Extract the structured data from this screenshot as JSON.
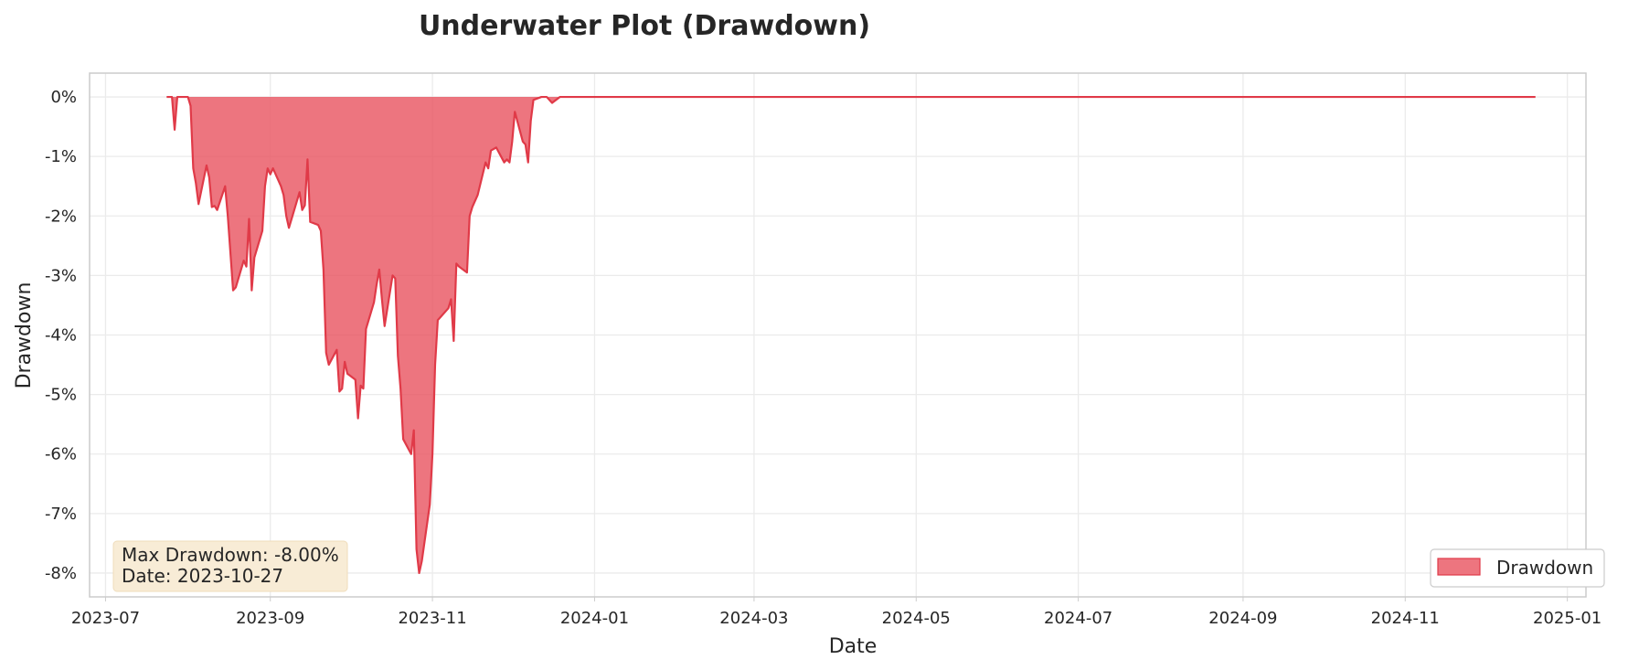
{
  "chart_data": {
    "type": "area",
    "title": "Underwater Plot (Drawdown)",
    "xlabel": "Date",
    "ylabel": "Drawdown",
    "x_axis_type": "date",
    "xlim": [
      "2023-06-25",
      "2025-01-08"
    ],
    "ylim": [
      -8.4,
      0.4
    ],
    "y_unit": "%",
    "grid": true,
    "legend_position": "lower-right",
    "x_ticks": [
      "2023-07",
      "2023-09",
      "2023-11",
      "2024-01",
      "2024-03",
      "2024-05",
      "2024-07",
      "2024-09",
      "2024-11",
      "2025-01"
    ],
    "y_ticks": [
      "0%",
      "-1%",
      "-2%",
      "-3%",
      "-4%",
      "-5%",
      "-6%",
      "-7%",
      "-8%"
    ],
    "colors": {
      "fill": "#e8525f",
      "line": "#e03a48",
      "grid": "#ebebeb",
      "frame": "#cccccc",
      "annotation_bg": "#f8ecd6",
      "annotation_border": "#efdcbb"
    },
    "annotation": {
      "line1": "Max Drawdown: -8.00%",
      "line2": "Date: 2023-10-27"
    },
    "series": [
      {
        "name": "Drawdown",
        "points": [
          [
            "2023-07-24",
            0.0
          ],
          [
            "2023-07-26",
            0.0
          ],
          [
            "2023-07-27",
            -0.55
          ],
          [
            "2023-07-28",
            0.0
          ],
          [
            "2023-07-31",
            0.0
          ],
          [
            "2023-08-01",
            0.0
          ],
          [
            "2023-08-02",
            -0.15
          ],
          [
            "2023-08-03",
            -1.2
          ],
          [
            "2023-08-04",
            -1.45
          ],
          [
            "2023-08-05",
            -1.8
          ],
          [
            "2023-08-08",
            -1.15
          ],
          [
            "2023-08-09",
            -1.35
          ],
          [
            "2023-08-10",
            -1.85
          ],
          [
            "2023-08-11",
            -1.83
          ],
          [
            "2023-08-12",
            -1.9
          ],
          [
            "2023-08-15",
            -1.5
          ],
          [
            "2023-08-16",
            -2.0
          ],
          [
            "2023-08-18",
            -3.25
          ],
          [
            "2023-08-19",
            -3.2
          ],
          [
            "2023-08-22",
            -2.75
          ],
          [
            "2023-08-23",
            -2.85
          ],
          [
            "2023-08-24",
            -2.05
          ],
          [
            "2023-08-25",
            -3.25
          ],
          [
            "2023-08-26",
            -2.7
          ],
          [
            "2023-08-29",
            -2.25
          ],
          [
            "2023-08-30",
            -1.5
          ],
          [
            "2023-08-31",
            -1.2
          ],
          [
            "2023-09-01",
            -1.3
          ],
          [
            "2023-09-02",
            -1.2
          ],
          [
            "2023-09-05",
            -1.5
          ],
          [
            "2023-09-06",
            -1.65
          ],
          [
            "2023-09-07",
            -2.0
          ],
          [
            "2023-09-08",
            -2.2
          ],
          [
            "2023-09-09",
            -2.05
          ],
          [
            "2023-09-12",
            -1.6
          ],
          [
            "2023-09-13",
            -1.9
          ],
          [
            "2023-09-14",
            -1.82
          ],
          [
            "2023-09-15",
            -1.05
          ],
          [
            "2023-09-16",
            -2.1
          ],
          [
            "2023-09-19",
            -2.15
          ],
          [
            "2023-09-20",
            -2.25
          ],
          [
            "2023-09-21",
            -2.9
          ],
          [
            "2023-09-22",
            -4.3
          ],
          [
            "2023-09-23",
            -4.5
          ],
          [
            "2023-09-26",
            -4.25
          ],
          [
            "2023-09-27",
            -4.95
          ],
          [
            "2023-09-28",
            -4.9
          ],
          [
            "2023-09-29",
            -4.45
          ],
          [
            "2023-09-30",
            -4.65
          ],
          [
            "2023-10-03",
            -4.75
          ],
          [
            "2023-10-04",
            -5.4
          ],
          [
            "2023-10-05",
            -4.85
          ],
          [
            "2023-10-06",
            -4.9
          ],
          [
            "2023-10-07",
            -3.9
          ],
          [
            "2023-10-10",
            -3.45
          ],
          [
            "2023-10-11",
            -3.15
          ],
          [
            "2023-10-12",
            -2.9
          ],
          [
            "2023-10-13",
            -3.4
          ],
          [
            "2023-10-14",
            -3.85
          ],
          [
            "2023-10-17",
            -3.0
          ],
          [
            "2023-10-18",
            -3.05
          ],
          [
            "2023-10-19",
            -4.35
          ],
          [
            "2023-10-20",
            -4.9
          ],
          [
            "2023-10-21",
            -5.75
          ],
          [
            "2023-10-24",
            -6.0
          ],
          [
            "2023-10-25",
            -5.6
          ],
          [
            "2023-10-26",
            -7.6
          ],
          [
            "2023-10-27",
            -8.0
          ],
          [
            "2023-10-28",
            -7.8
          ],
          [
            "2023-10-31",
            -6.85
          ],
          [
            "2023-11-01",
            -6.0
          ],
          [
            "2023-11-02",
            -4.5
          ],
          [
            "2023-11-03",
            -3.75
          ],
          [
            "2023-11-04",
            -3.7
          ],
          [
            "2023-11-07",
            -3.55
          ],
          [
            "2023-11-08",
            -3.4
          ],
          [
            "2023-11-09",
            -4.1
          ],
          [
            "2023-11-10",
            -2.8
          ],
          [
            "2023-11-11",
            -2.85
          ],
          [
            "2023-11-14",
            -2.95
          ],
          [
            "2023-11-15",
            -2.0
          ],
          [
            "2023-11-16",
            -1.85
          ],
          [
            "2023-11-18",
            -1.65
          ],
          [
            "2023-11-21",
            -1.1
          ],
          [
            "2023-11-22",
            -1.2
          ],
          [
            "2023-11-23",
            -0.9
          ],
          [
            "2023-11-25",
            -0.85
          ],
          [
            "2023-11-28",
            -1.1
          ],
          [
            "2023-11-29",
            -1.05
          ],
          [
            "2023-11-30",
            -1.1
          ],
          [
            "2023-12-01",
            -0.75
          ],
          [
            "2023-12-02",
            -0.25
          ],
          [
            "2023-12-05",
            -0.75
          ],
          [
            "2023-12-06",
            -0.8
          ],
          [
            "2023-12-07",
            -1.1
          ],
          [
            "2023-12-08",
            -0.4
          ],
          [
            "2023-12-09",
            -0.05
          ],
          [
            "2023-12-12",
            0.0
          ],
          [
            "2023-12-14",
            0.0
          ],
          [
            "2023-12-16",
            -0.1
          ],
          [
            "2023-12-19",
            0.0
          ],
          [
            "2024-01-01",
            0.0
          ],
          [
            "2024-06-01",
            0.0
          ],
          [
            "2024-12-20",
            0.0
          ]
        ]
      }
    ]
  }
}
